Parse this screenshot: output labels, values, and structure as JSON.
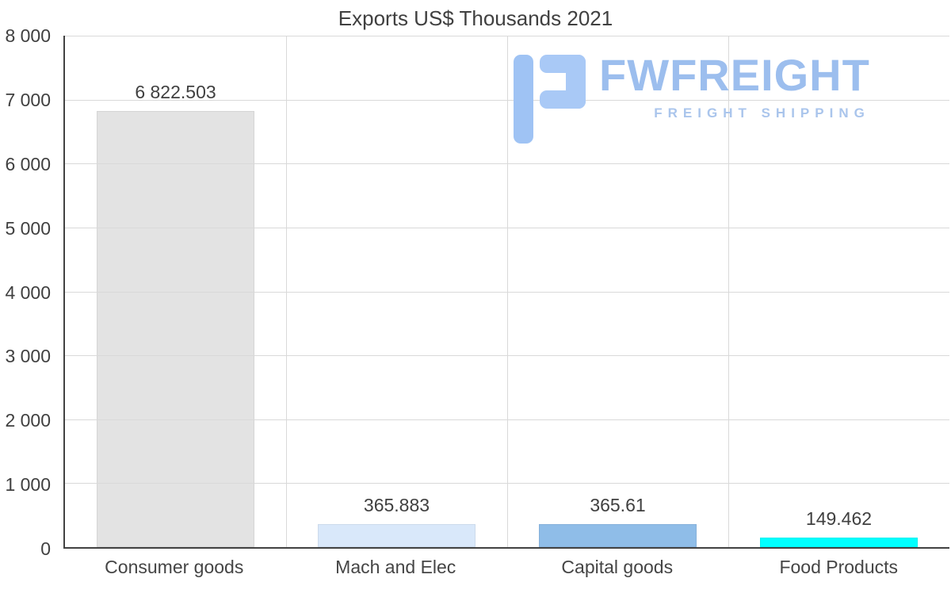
{
  "title": "Exports US$ Thousands 2021",
  "logo": {
    "name": "FWFREIGHT",
    "tagline": "FREIGHT SHIPPING",
    "icon": "f-bracket-logo-icon",
    "color": "#9cbeee"
  },
  "chart_data": {
    "type": "bar",
    "title": "Exports US$ Thousands 2021",
    "categories": [
      "Consumer goods",
      "Mach and Elec",
      "Capital goods",
      "Food Products"
    ],
    "values": [
      6822.503,
      365.883,
      365.61,
      149.462
    ],
    "value_labels": [
      "6 822.503",
      "365.883",
      "365.61",
      "149.462"
    ],
    "bar_colors": [
      "#e3e3e3",
      "#d9e8fa",
      "#8fbde8",
      "#00ffff"
    ],
    "xlabel": "",
    "ylabel": "",
    "ylim": [
      0,
      8000
    ],
    "ytick_values": [
      0,
      1000,
      2000,
      3000,
      4000,
      5000,
      6000,
      7000,
      8000
    ],
    "ytick_labels": [
      "0",
      "1 000",
      "2 000",
      "3 000",
      "4 000",
      "5 000",
      "6 000",
      "7 000",
      "8 000"
    ],
    "grid": true,
    "legend": false
  }
}
